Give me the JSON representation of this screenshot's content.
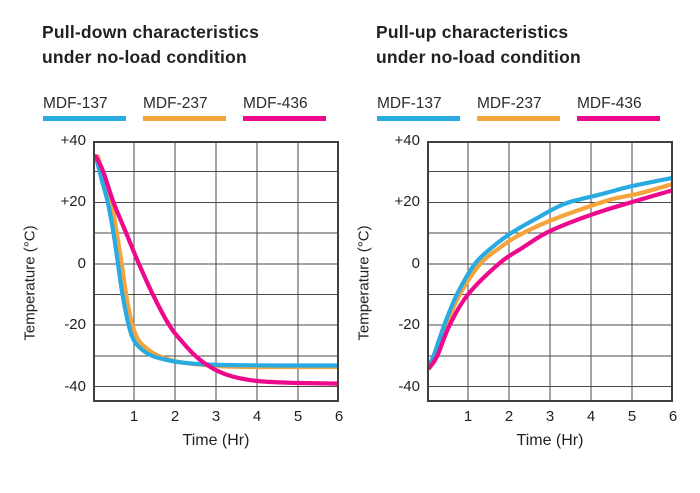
{
  "colors": {
    "background": "#ffffff",
    "text": "#231f20",
    "grid": "#4a4a4a",
    "border": "#3f3f3f"
  },
  "chart_data": [
    {
      "type": "line",
      "title": "Pull-down characteristics under no-load condition",
      "title_lines": [
        "Pull-down characteristics",
        "under no-load condition"
      ],
      "xlabel": "Time (Hr)",
      "ylabel": "Temperature (°C)",
      "xlim": [
        0,
        6
      ],
      "ylim": [
        -45,
        40
      ],
      "xticks": [
        1,
        2,
        3,
        4,
        5,
        6
      ],
      "xtick_labels": [
        "1",
        "2",
        "3",
        "4",
        "5",
        "6"
      ],
      "yticks": [
        40,
        20,
        0,
        -20,
        -40
      ],
      "ytick_labels": [
        "+40",
        "+20",
        "0",
        "-20",
        "-40"
      ],
      "grid": true,
      "legend_position": "top",
      "series": [
        {
          "name": "MDF-137",
          "color": "#29abe2",
          "points": [
            [
              0.07,
              35
            ],
            [
              0.2,
              28
            ],
            [
              0.36,
              20
            ],
            [
              0.5,
              10
            ],
            [
              0.61,
              0
            ],
            [
              0.72,
              -10
            ],
            [
              0.87,
              -20
            ],
            [
              1.0,
              -25
            ],
            [
              1.2,
              -28
            ],
            [
              1.45,
              -30
            ],
            [
              1.8,
              -31.3
            ],
            [
              2.2,
              -32.2
            ],
            [
              2.8,
              -32.8
            ],
            [
              3.5,
              -33
            ],
            [
              4.5,
              -33.1
            ],
            [
              6,
              -33.1
            ]
          ]
        },
        {
          "name": "MDF-237",
          "color": "#f5a43b",
          "points": [
            [
              0.12,
              35
            ],
            [
              0.27,
              28
            ],
            [
              0.45,
              20
            ],
            [
              0.58,
              10
            ],
            [
              0.7,
              0
            ],
            [
              0.81,
              -10
            ],
            [
              0.96,
              -20
            ],
            [
              1.12,
              -25
            ],
            [
              1.35,
              -28
            ],
            [
              1.6,
              -30
            ],
            [
              2.0,
              -31.7
            ],
            [
              2.5,
              -32.7
            ],
            [
              3.2,
              -33.4
            ],
            [
              4.0,
              -33.6
            ],
            [
              6,
              -33.6
            ]
          ]
        },
        {
          "name": "MDF-436",
          "color": "#ec098c",
          "points": [
            [
              0.07,
              35
            ],
            [
              0.25,
              30
            ],
            [
              0.5,
              20
            ],
            [
              0.81,
              10
            ],
            [
              1.12,
              0
            ],
            [
              1.46,
              -10
            ],
            [
              1.86,
              -20
            ],
            [
              2.15,
              -25
            ],
            [
              2.5,
              -30
            ],
            [
              2.85,
              -33.5
            ],
            [
              3.2,
              -35.8
            ],
            [
              3.6,
              -37.3
            ],
            [
              4.1,
              -38.3
            ],
            [
              5.0,
              -38.8
            ],
            [
              6,
              -39
            ]
          ]
        }
      ]
    },
    {
      "type": "line",
      "title": "Pull-up characteristics under no-load condition",
      "title_lines": [
        "Pull-up characteristics",
        "under no-load condition"
      ],
      "xlabel": "Time (Hr)",
      "ylabel": "Temperature (°C)",
      "xlim": [
        0,
        6
      ],
      "ylim": [
        -45,
        40
      ],
      "xticks": [
        1,
        2,
        3,
        4,
        5,
        6
      ],
      "xtick_labels": [
        "1",
        "2",
        "3",
        "4",
        "5",
        "6"
      ],
      "yticks": [
        40,
        20,
        0,
        -20,
        -40
      ],
      "ytick_labels": [
        "+40",
        "+20",
        "0",
        "-20",
        "-40"
      ],
      "grid": true,
      "legend_position": "top",
      "series": [
        {
          "name": "MDF-137",
          "color": "#29abe2",
          "points": [
            [
              0.05,
              -33
            ],
            [
              0.16,
              -30
            ],
            [
              0.42,
              -20
            ],
            [
              0.73,
              -10
            ],
            [
              1.17,
              0
            ],
            [
              1.6,
              5.5
            ],
            [
              2.05,
              10
            ],
            [
              2.7,
              15
            ],
            [
              3.35,
              19.5
            ],
            [
              4.2,
              22.5
            ],
            [
              5.0,
              25.3
            ],
            [
              6,
              28
            ]
          ]
        },
        {
          "name": "MDF-237",
          "color": "#f5a43b",
          "points": [
            [
              0.05,
              -33.6
            ],
            [
              0.2,
              -30
            ],
            [
              0.47,
              -20
            ],
            [
              0.8,
              -10
            ],
            [
              1.3,
              0
            ],
            [
              1.75,
              5
            ],
            [
              2.2,
              9
            ],
            [
              2.9,
              13.5
            ],
            [
              3.7,
              17.5
            ],
            [
              4.5,
              21
            ],
            [
              5.2,
              23
            ],
            [
              6,
              26
            ]
          ]
        },
        {
          "name": "MDF-436",
          "color": "#ec098c",
          "points": [
            [
              0.05,
              -34
            ],
            [
              0.25,
              -30
            ],
            [
              0.55,
              -20
            ],
            [
              1.0,
              -10
            ],
            [
              1.75,
              0
            ],
            [
              2.3,
              5
            ],
            [
              2.9,
              10
            ],
            [
              3.6,
              14
            ],
            [
              4.3,
              17.3
            ],
            [
              5.1,
              20.5
            ],
            [
              6,
              24
            ]
          ]
        }
      ]
    }
  ]
}
